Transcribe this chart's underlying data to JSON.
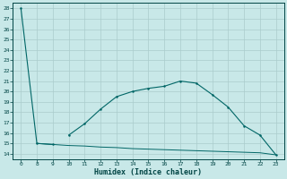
{
  "xlabel": "Humidex (Indice chaleur)",
  "bg_color": "#c8e8e8",
  "grid_color": "#aacccc",
  "line_color": "#006666",
  "ylim": [
    13.5,
    28.5
  ],
  "yticks": [
    14,
    15,
    16,
    17,
    18,
    19,
    20,
    21,
    22,
    23,
    24,
    25,
    26,
    27,
    28
  ],
  "xlim": [
    -0.5,
    16.5
  ],
  "xtick_labels": [
    "0",
    "8",
    "9",
    "10",
    "11",
    "12",
    "13",
    "14",
    "15",
    "16",
    "17",
    "18",
    "19",
    "20",
    "21",
    "22",
    "23"
  ],
  "line1_x": [
    0,
    8,
    9
  ],
  "line1_y": [
    28,
    15.0,
    14.9
  ],
  "line2_x": [
    10,
    11,
    12,
    13,
    14,
    15,
    16,
    17,
    18,
    19,
    20,
    21,
    22,
    23
  ],
  "line2_y": [
    15.8,
    16.9,
    18.3,
    19.5,
    20.0,
    20.3,
    20.5,
    21.0,
    20.8,
    19.7,
    18.5,
    16.7,
    15.8,
    13.9
  ],
  "line3_x": [
    8,
    9,
    10,
    11,
    12,
    13,
    14,
    15,
    16,
    17,
    18,
    19,
    20,
    21,
    22,
    23
  ],
  "line3_y": [
    15.0,
    14.9,
    14.8,
    14.75,
    14.65,
    14.6,
    14.5,
    14.45,
    14.4,
    14.35,
    14.3,
    14.25,
    14.2,
    14.15,
    14.1,
    13.9
  ]
}
